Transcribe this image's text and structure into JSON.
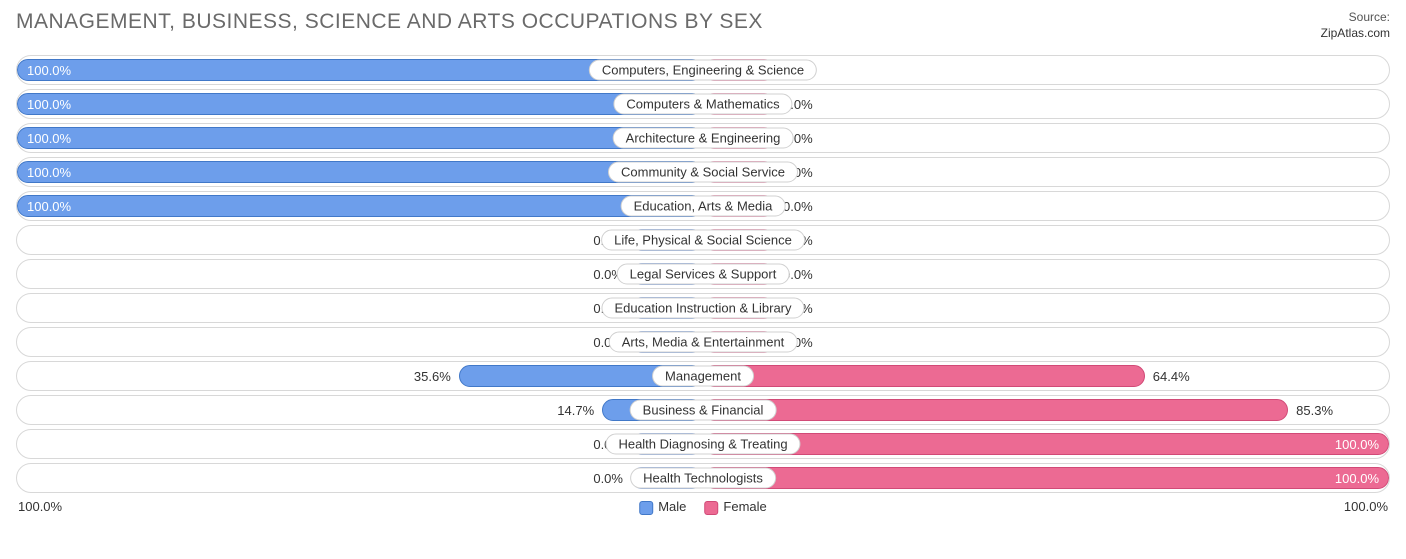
{
  "title": "MANAGEMENT, BUSINESS, SCIENCE AND ARTS OCCUPATIONS BY SEX",
  "title_color": "#6a6a6a",
  "source_label": "Source:",
  "source_value": "ZipAtlas.com",
  "colors": {
    "male_fill": "#6d9eeb",
    "male_border": "#4178c8",
    "female_fill": "#ec6a93",
    "female_border": "#d14a77",
    "track_border": "#d8d8d8",
    "pill_border": "#d0d0d0",
    "male_zero_fill": "#a9c2ee",
    "male_zero_border": "#8aa9dc",
    "female_zero_fill": "#f3a7bf",
    "female_zero_border": "#e592ae"
  },
  "min_bar_pct": 10.5,
  "axis": {
    "left": "100.0%",
    "right": "100.0%"
  },
  "legend": {
    "male": "Male",
    "female": "Female"
  },
  "categories": [
    {
      "label": "Computers, Engineering & Science",
      "male": 100.0,
      "female": 0.0
    },
    {
      "label": "Computers & Mathematics",
      "male": 100.0,
      "female": 0.0
    },
    {
      "label": "Architecture & Engineering",
      "male": 100.0,
      "female": 0.0
    },
    {
      "label": "Community & Social Service",
      "male": 100.0,
      "female": 0.0
    },
    {
      "label": "Education, Arts & Media",
      "male": 100.0,
      "female": 0.0
    },
    {
      "label": "Life, Physical & Social Science",
      "male": 0.0,
      "female": 0.0
    },
    {
      "label": "Legal Services & Support",
      "male": 0.0,
      "female": 0.0
    },
    {
      "label": "Education Instruction & Library",
      "male": 0.0,
      "female": 0.0
    },
    {
      "label": "Arts, Media & Entertainment",
      "male": 0.0,
      "female": 0.0
    },
    {
      "label": "Management",
      "male": 35.6,
      "female": 64.4
    },
    {
      "label": "Business & Financial",
      "male": 14.7,
      "female": 85.3
    },
    {
      "label": "Health Diagnosing & Treating",
      "male": 0.0,
      "female": 100.0
    },
    {
      "label": "Health Technologists",
      "male": 0.0,
      "female": 100.0
    }
  ]
}
